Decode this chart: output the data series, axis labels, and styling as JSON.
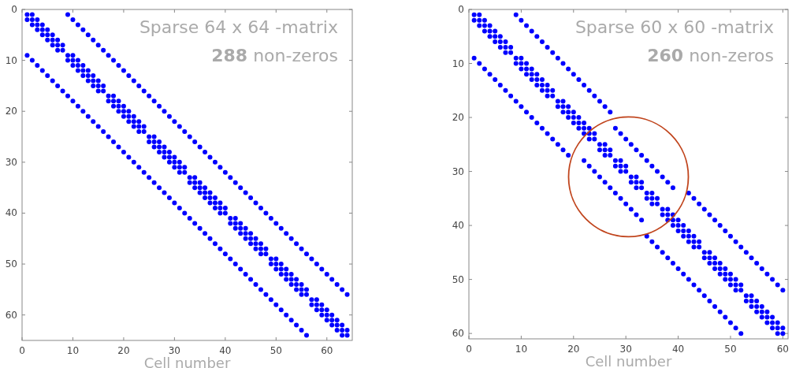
{
  "chart_data": [
    {
      "type": "scatter",
      "title": "Sparse 64 x 64 -matrix",
      "subtitle": "288 non-zeros",
      "xlabel": "Cell number",
      "xlim": [
        0,
        65
      ],
      "ylim": [
        65,
        0
      ],
      "xticks": [
        0,
        10,
        20,
        30,
        40,
        50,
        60
      ],
      "yticks": [
        0,
        10,
        20,
        30,
        40,
        50,
        60
      ],
      "grid": false,
      "marker": "circle",
      "series": [
        {
          "color": "#0000ff",
          "x": [
            1,
            2,
            3,
            4,
            5,
            6,
            7,
            8,
            9,
            10,
            11,
            12,
            13,
            14,
            15,
            16,
            17,
            18,
            19,
            20,
            21,
            22,
            23,
            24,
            25,
            26,
            27,
            28,
            29,
            30,
            31,
            32,
            33,
            34,
            35,
            36,
            37,
            38,
            39,
            40,
            41,
            42,
            43,
            44,
            45,
            46,
            47,
            48,
            49,
            50,
            51,
            52,
            53,
            54,
            55,
            56,
            57,
            58,
            59,
            60,
            61,
            62,
            63,
            64,
            9,
            10,
            11,
            12,
            13,
            14,
            15,
            16,
            17,
            18,
            19,
            20,
            21,
            22,
            23,
            24,
            25,
            26,
            27,
            28,
            29,
            30,
            31,
            32,
            33,
            34,
            35,
            36,
            37,
            38,
            39,
            40,
            41,
            42,
            43,
            44,
            45,
            46,
            47,
            48,
            49,
            50,
            51,
            52,
            53,
            54,
            55,
            56,
            57,
            58,
            59,
            60,
            61,
            62,
            63,
            64,
            1,
            2,
            3,
            4,
            5,
            6,
            7,
            8,
            9,
            10,
            11,
            12,
            13,
            14,
            15,
            16,
            17,
            18,
            19,
            20,
            21,
            22,
            23,
            24,
            25,
            26,
            27,
            28,
            29,
            30,
            31,
            32,
            33,
            34,
            35,
            36,
            37,
            38,
            39,
            40,
            41,
            42,
            43,
            44,
            45,
            46,
            47,
            48,
            49,
            50,
            51,
            52,
            53,
            54,
            55,
            56,
            2,
            3,
            4,
            5,
            6,
            7,
            8,
            10,
            11,
            12,
            13,
            14,
            15,
            16,
            18,
            19,
            20,
            21,
            22,
            23,
            24,
            26,
            27,
            28,
            29,
            30,
            31,
            32,
            34,
            35,
            36,
            37,
            38,
            39,
            40,
            42,
            43,
            44,
            45,
            46,
            47,
            48,
            50,
            51,
            52,
            53,
            54,
            55,
            56,
            58,
            59,
            60,
            61,
            62,
            63,
            64,
            1,
            2,
            3,
            4,
            5,
            6,
            7,
            9,
            10,
            11,
            12,
            13,
            14,
            15,
            17,
            18,
            19,
            20,
            21,
            22,
            23,
            25,
            26,
            27,
            28,
            29,
            30,
            31,
            33,
            34,
            35,
            36,
            37,
            38,
            39,
            41,
            42,
            43,
            44,
            45,
            46,
            47,
            49,
            50,
            51,
            52,
            53,
            54,
            55,
            57,
            58,
            59,
            60,
            61,
            62,
            63
          ],
          "values": [
            1,
            2,
            3,
            4,
            5,
            6,
            7,
            8,
            9,
            10,
            11,
            12,
            13,
            14,
            15,
            16,
            17,
            18,
            19,
            20,
            21,
            22,
            23,
            24,
            25,
            26,
            27,
            28,
            29,
            30,
            31,
            32,
            33,
            34,
            35,
            36,
            37,
            38,
            39,
            40,
            41,
            42,
            43,
            44,
            45,
            46,
            47,
            48,
            49,
            50,
            51,
            52,
            53,
            54,
            55,
            56,
            57,
            58,
            59,
            60,
            61,
            62,
            63,
            64,
            1,
            2,
            3,
            4,
            5,
            6,
            7,
            8,
            9,
            10,
            11,
            12,
            13,
            14,
            15,
            16,
            17,
            18,
            19,
            20,
            21,
            22,
            23,
            24,
            25,
            26,
            27,
            28,
            29,
            30,
            31,
            32,
            33,
            34,
            35,
            36,
            37,
            38,
            39,
            40,
            41,
            42,
            43,
            44,
            45,
            46,
            47,
            48,
            49,
            50,
            51,
            52,
            53,
            54,
            55,
            56,
            9,
            10,
            11,
            12,
            13,
            14,
            15,
            16,
            17,
            18,
            19,
            20,
            21,
            22,
            23,
            24,
            25,
            26,
            27,
            28,
            29,
            30,
            31,
            32,
            33,
            34,
            35,
            36,
            37,
            38,
            39,
            40,
            41,
            42,
            43,
            44,
            45,
            46,
            47,
            48,
            49,
            50,
            51,
            52,
            53,
            54,
            55,
            56,
            57,
            58,
            59,
            60,
            61,
            62,
            63,
            64,
            1,
            2,
            3,
            4,
            5,
            6,
            7,
            9,
            10,
            11,
            12,
            13,
            14,
            15,
            17,
            18,
            19,
            20,
            21,
            22,
            23,
            25,
            26,
            27,
            28,
            29,
            30,
            31,
            33,
            34,
            35,
            36,
            37,
            38,
            39,
            41,
            42,
            43,
            44,
            45,
            46,
            47,
            49,
            50,
            51,
            52,
            53,
            54,
            55,
            57,
            58,
            59,
            60,
            61,
            62,
            63,
            2,
            3,
            4,
            5,
            6,
            7,
            8,
            10,
            11,
            12,
            13,
            14,
            15,
            16,
            18,
            19,
            20,
            21,
            22,
            23,
            24,
            26,
            27,
            28,
            29,
            30,
            31,
            32,
            34,
            35,
            36,
            37,
            38,
            39,
            40,
            42,
            43,
            44,
            45,
            46,
            47,
            48,
            50,
            51,
            52,
            53,
            54,
            55,
            56,
            58,
            59,
            60,
            61,
            62,
            63,
            64
          ]
        }
      ]
    },
    {
      "type": "scatter",
      "title": "Sparse 60 x 60 -matrix",
      "subtitle": "260 non-zeros",
      "xlabel": "Cell number",
      "xlim": [
        0,
        61
      ],
      "ylim": [
        61,
        0
      ],
      "xticks": [
        0,
        10,
        20,
        30,
        40,
        50,
        60
      ],
      "yticks": [
        0,
        10,
        20,
        30,
        40,
        50,
        60
      ],
      "grid": false,
      "marker": "circle",
      "series": [
        {
          "color": "#0000ff",
          "x": [
            1,
            2,
            3,
            4,
            5,
            6,
            7,
            8,
            9,
            10,
            11,
            12,
            13,
            14,
            15,
            16,
            17,
            18,
            19,
            20,
            21,
            22,
            23,
            24,
            25,
            26,
            27,
            28,
            29,
            30,
            31,
            32,
            33,
            34,
            35,
            36,
            37,
            38,
            39,
            40,
            41,
            42,
            43,
            44,
            45,
            46,
            47,
            48,
            49,
            50,
            51,
            52,
            53,
            54,
            55,
            56,
            57,
            58,
            59,
            60,
            9,
            10,
            11,
            12,
            13,
            14,
            15,
            16,
            17,
            18,
            19,
            20,
            21,
            22,
            23,
            24,
            25,
            26,
            27,
            28,
            29,
            30,
            31,
            32,
            33,
            34,
            35,
            36,
            37,
            38,
            39,
            42,
            43,
            44,
            45,
            46,
            47,
            48,
            49,
            50,
            51,
            52,
            53,
            54,
            55,
            56,
            57,
            58,
            59,
            60,
            1,
            2,
            3,
            4,
            5,
            6,
            7,
            8,
            9,
            10,
            11,
            12,
            13,
            14,
            15,
            16,
            17,
            18,
            19,
            22,
            23,
            24,
            25,
            26,
            27,
            28,
            29,
            30,
            31,
            32,
            33,
            34,
            35,
            36,
            37,
            38,
            39,
            40,
            41,
            42,
            43,
            44,
            45,
            46,
            47,
            48,
            49,
            50,
            51,
            52,
            2,
            3,
            4,
            5,
            6,
            7,
            8,
            10,
            11,
            12,
            13,
            14,
            15,
            16,
            18,
            19,
            20,
            21,
            22,
            23,
            24,
            26,
            27,
            29,
            30,
            32,
            33,
            35,
            36,
            38,
            39,
            40,
            41,
            42,
            43,
            44,
            46,
            47,
            48,
            49,
            50,
            51,
            52,
            54,
            55,
            56,
            57,
            58,
            59,
            60,
            1,
            2,
            3,
            4,
            5,
            6,
            7,
            9,
            10,
            11,
            12,
            13,
            14,
            15,
            17,
            18,
            19,
            20,
            21,
            22,
            23,
            25,
            26,
            28,
            29,
            31,
            32,
            34,
            35,
            37,
            38,
            39,
            40,
            41,
            42,
            43,
            45,
            46,
            47,
            48,
            49,
            50,
            51,
            53,
            54,
            55,
            56,
            57,
            58,
            59
          ],
          "values": [
            1,
            2,
            3,
            4,
            5,
            6,
            7,
            8,
            9,
            10,
            11,
            12,
            13,
            14,
            15,
            16,
            17,
            18,
            19,
            20,
            21,
            22,
            23,
            24,
            25,
            26,
            27,
            28,
            29,
            30,
            31,
            32,
            33,
            34,
            35,
            36,
            37,
            38,
            39,
            40,
            41,
            42,
            43,
            44,
            45,
            46,
            47,
            48,
            49,
            50,
            51,
            52,
            53,
            54,
            55,
            56,
            57,
            58,
            59,
            60,
            1,
            2,
            3,
            4,
            5,
            6,
            7,
            8,
            9,
            10,
            11,
            12,
            13,
            14,
            15,
            16,
            17,
            18,
            19,
            22,
            23,
            24,
            25,
            26,
            27,
            28,
            29,
            30,
            31,
            32,
            33,
            34,
            35,
            36,
            37,
            38,
            39,
            40,
            41,
            42,
            43,
            44,
            45,
            46,
            47,
            48,
            49,
            50,
            51,
            52,
            9,
            10,
            11,
            12,
            13,
            14,
            15,
            16,
            17,
            18,
            19,
            20,
            21,
            22,
            23,
            24,
            25,
            26,
            27,
            28,
            29,
            30,
            31,
            32,
            33,
            34,
            35,
            36,
            37,
            38,
            39,
            42,
            43,
            44,
            45,
            46,
            47,
            48,
            49,
            50,
            51,
            52,
            53,
            54,
            55,
            56,
            57,
            58,
            59,
            60,
            1,
            2,
            3,
            4,
            5,
            6,
            7,
            9,
            10,
            11,
            12,
            13,
            14,
            15,
            17,
            18,
            19,
            20,
            21,
            22,
            23,
            25,
            26,
            28,
            29,
            31,
            32,
            34,
            35,
            37,
            38,
            39,
            40,
            41,
            42,
            43,
            45,
            46,
            47,
            48,
            49,
            50,
            51,
            53,
            54,
            55,
            56,
            57,
            58,
            59,
            2,
            3,
            4,
            5,
            6,
            7,
            8,
            10,
            11,
            12,
            13,
            14,
            15,
            16,
            18,
            19,
            20,
            21,
            22,
            23,
            24,
            26,
            27,
            29,
            30,
            32,
            33,
            35,
            36,
            38,
            39,
            40,
            41,
            42,
            43,
            44,
            46,
            47,
            48,
            49,
            50,
            51,
            52,
            54,
            55,
            56,
            57,
            58,
            59,
            60
          ]
        }
      ]
    }
  ]
}
